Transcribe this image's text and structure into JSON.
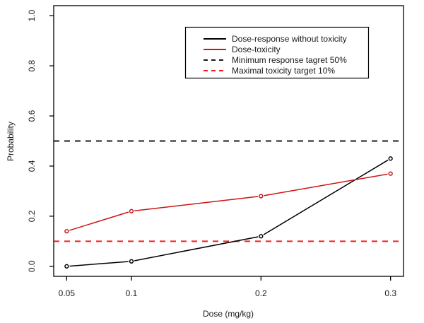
{
  "figure": {
    "background_color": "#ffffff",
    "border_color": "#000000"
  },
  "chart_data": {
    "type": "line",
    "title": "",
    "xlabel": "Dose (mg/kg)",
    "ylabel": "Probability",
    "x": [
      0.05,
      0.1,
      0.2,
      0.3
    ],
    "xlim": [
      0.04,
      0.31
    ],
    "ylim": [
      -0.04,
      1.04
    ],
    "xtick_values": [
      0.05,
      0.1,
      0.2,
      0.3
    ],
    "xtick_labels": [
      "0.05",
      "0.1",
      "0.2",
      "0.3"
    ],
    "ytick_values": [
      0.0,
      0.2,
      0.4,
      0.6,
      0.8,
      1.0
    ],
    "ytick_labels": [
      "0.0",
      "0.2",
      "0.4",
      "0.6",
      "0.8",
      "1.0"
    ],
    "grid": false,
    "legend_position": "top-right-inside",
    "series": [
      {
        "name": "Dose-response without toxicity",
        "color": "#000000",
        "style": "solid",
        "marker": "open-circle",
        "values": [
          0.0,
          0.02,
          0.12,
          0.43
        ]
      },
      {
        "name": "Dose-toxicity",
        "color": "#cc1414",
        "style": "solid",
        "marker": "open-circle",
        "values": [
          0.14,
          0.22,
          0.28,
          0.37
        ]
      }
    ],
    "reference_lines": [
      {
        "name": "Minimum response tagret 50%",
        "y": 0.5,
        "color": "#1a1a1a",
        "style": "dashed"
      },
      {
        "name": "Maximal toxicity target 10%",
        "y": 0.1,
        "color": "#ff1a1a",
        "style": "dashed"
      }
    ]
  }
}
